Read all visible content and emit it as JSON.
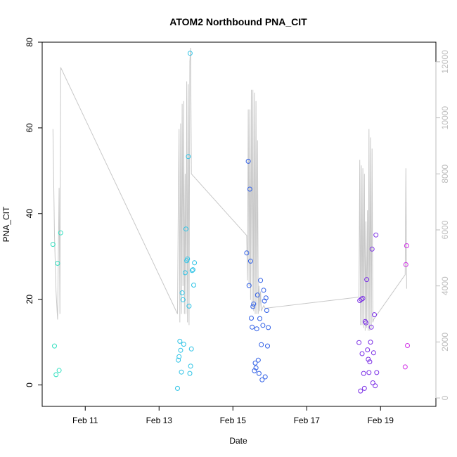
{
  "chart_data": {
    "type": "scatter",
    "title": "ATOM2 Northbound PNA_CIT",
    "xlabel": "Date",
    "ylabel": "PNA_CIT",
    "xlim": [
      "2025-02-09T20:00",
      "2025-02-20T12:00"
    ],
    "ylim": [
      -5,
      80
    ],
    "y2lim": [
      -300,
      12700
    ],
    "x_ticks": [
      "Feb 11",
      "Feb 13",
      "Feb 15",
      "Feb 17",
      "Feb 19"
    ],
    "x_tick_dates": [
      "2025-02-11",
      "2025-02-13",
      "2025-02-15",
      "2025-02-17",
      "2025-02-19"
    ],
    "y_ticks": [
      0,
      20,
      40,
      60,
      80
    ],
    "y2_ticks": [
      0,
      2000,
      4000,
      6000,
      8000,
      10000,
      12000
    ],
    "grid": false,
    "legend": "none",
    "colors": {
      "line": "#c8c8c8",
      "right_axis": "#bdbdbd",
      "group_feb10": "#33e0c0",
      "group_feb13": "#2cc3e6",
      "group_feb15": "#2f5fe6",
      "group_feb18": "#7b2fe6",
      "group_feb19": "#d02fe6"
    },
    "series": [
      {
        "type": "points",
        "color_key": "group_feb10",
        "points": [
          [
            "2025-02-10T03:00",
            32.8
          ],
          [
            "2025-02-10T04:00",
            9.1
          ],
          [
            "2025-02-10T05:00",
            2.4
          ],
          [
            "2025-02-10T06:00",
            28.4
          ],
          [
            "2025-02-10T07:00",
            3.4
          ],
          [
            "2025-02-10T08:00",
            35.5
          ]
        ]
      },
      {
        "type": "points",
        "color_key": "group_feb13",
        "points": [
          [
            "2025-02-13T12:00",
            -0.8
          ],
          [
            "2025-02-13T12:30",
            5.8
          ],
          [
            "2025-02-13T13:00",
            6.6
          ],
          [
            "2025-02-13T13:30",
            10.2
          ],
          [
            "2025-02-13T14:00",
            8.1
          ],
          [
            "2025-02-13T14:30",
            3.0
          ],
          [
            "2025-02-13T15:00",
            21.5
          ],
          [
            "2025-02-13T15:30",
            19.9
          ],
          [
            "2025-02-13T16:00",
            9.5
          ],
          [
            "2025-02-13T17:00",
            26.2
          ],
          [
            "2025-02-13T17:30",
            36.4
          ],
          [
            "2025-02-13T18:00",
            29.0
          ],
          [
            "2025-02-13T18:30",
            29.4
          ],
          [
            "2025-02-13T19:00",
            53.3
          ],
          [
            "2025-02-13T19:30",
            18.4
          ],
          [
            "2025-02-13T20:00",
            2.7
          ],
          [
            "2025-02-13T20:30",
            4.4
          ],
          [
            "2025-02-13T21:00",
            8.4
          ],
          [
            "2025-02-13T21:30",
            26.7
          ],
          [
            "2025-02-13T22:00",
            26.9
          ],
          [
            "2025-02-13T22:30",
            23.3
          ],
          [
            "2025-02-13T23:00",
            28.5
          ],
          [
            "2025-02-13T20:10",
            77.4
          ]
        ]
      },
      {
        "type": "points",
        "color_key": "group_feb15",
        "points": [
          [
            "2025-02-15T09:00",
            30.8
          ],
          [
            "2025-02-15T10:00",
            52.2
          ],
          [
            "2025-02-15T10:30",
            23.2
          ],
          [
            "2025-02-15T11:00",
            45.7
          ],
          [
            "2025-02-15T11:30",
            28.9
          ],
          [
            "2025-02-15T12:00",
            15.6
          ],
          [
            "2025-02-15T12:30",
            13.5
          ],
          [
            "2025-02-15T13:00",
            18.3
          ],
          [
            "2025-02-15T13:30",
            18.9
          ],
          [
            "2025-02-15T14:00",
            3.3
          ],
          [
            "2025-02-15T14:30",
            5.1
          ],
          [
            "2025-02-15T15:00",
            4.0
          ],
          [
            "2025-02-15T15:30",
            13.1
          ],
          [
            "2025-02-15T16:00",
            21.0
          ],
          [
            "2025-02-15T16:30",
            5.8
          ],
          [
            "2025-02-15T17:00",
            2.7
          ],
          [
            "2025-02-15T17:30",
            15.5
          ],
          [
            "2025-02-15T18:00",
            24.4
          ],
          [
            "2025-02-15T18:30",
            9.4
          ],
          [
            "2025-02-15T19:00",
            1.2
          ],
          [
            "2025-02-15T19:30",
            13.9
          ],
          [
            "2025-02-15T20:00",
            22.1
          ],
          [
            "2025-02-15T20:30",
            19.6
          ],
          [
            "2025-02-15T21:00",
            1.9
          ],
          [
            "2025-02-15T21:30",
            20.3
          ],
          [
            "2025-02-15T22:00",
            17.4
          ],
          [
            "2025-02-15T22:30",
            9.1
          ],
          [
            "2025-02-15T23:00",
            13.4
          ]
        ]
      },
      {
        "type": "points",
        "color_key": "group_feb18",
        "points": [
          [
            "2025-02-18T10:00",
            9.9
          ],
          [
            "2025-02-18T10:30",
            19.7
          ],
          [
            "2025-02-18T11:00",
            -1.4
          ],
          [
            "2025-02-18T11:30",
            20.0
          ],
          [
            "2025-02-18T12:00",
            7.3
          ],
          [
            "2025-02-18T12:30",
            20.2
          ],
          [
            "2025-02-18T13:00",
            2.7
          ],
          [
            "2025-02-18T13:30",
            -0.8
          ],
          [
            "2025-02-18T14:00",
            14.8
          ],
          [
            "2025-02-18T14:30",
            14.5
          ],
          [
            "2025-02-18T15:00",
            24.6
          ],
          [
            "2025-02-18T15:30",
            8.2
          ],
          [
            "2025-02-18T16:00",
            6.0
          ],
          [
            "2025-02-18T16:30",
            2.9
          ],
          [
            "2025-02-18T17:00",
            5.4
          ],
          [
            "2025-02-18T17:30",
            10.0
          ],
          [
            "2025-02-18T18:00",
            13.5
          ],
          [
            "2025-02-18T18:30",
            31.7
          ],
          [
            "2025-02-18T19:00",
            0.5
          ],
          [
            "2025-02-18T19:30",
            7.5
          ],
          [
            "2025-02-18T20:00",
            16.4
          ],
          [
            "2025-02-18T20:30",
            -0.2
          ],
          [
            "2025-02-18T21:00",
            35.0
          ],
          [
            "2025-02-18T21:30",
            2.9
          ]
        ]
      },
      {
        "type": "points",
        "color_key": "group_feb19",
        "points": [
          [
            "2025-02-19T16:00",
            4.2
          ],
          [
            "2025-02-19T16:30",
            28.1
          ],
          [
            "2025-02-19T17:00",
            32.5
          ],
          [
            "2025-02-19T17:30",
            9.2
          ]
        ]
      },
      {
        "type": "line",
        "axis": "right",
        "color_key": "line",
        "points": [
          [
            "2025-02-10T03:00",
            9600
          ],
          [
            "2025-02-10T04:00",
            5800
          ],
          [
            "2025-02-10T05:00",
            3800
          ],
          [
            "2025-02-10T06:00",
            2800
          ],
          [
            "2025-02-10T07:00",
            7500
          ],
          [
            "2025-02-10T07:30",
            3000
          ],
          [
            "2025-02-10T08:00",
            11800
          ],
          [
            "2025-02-13T12:00",
            3000
          ],
          [
            "2025-02-13T12:30",
            7000
          ],
          [
            "2025-02-13T13:00",
            9600
          ],
          [
            "2025-02-13T13:30",
            2700
          ],
          [
            "2025-02-13T14:00",
            9800
          ],
          [
            "2025-02-13T14:30",
            3000
          ],
          [
            "2025-02-13T15:00",
            10500
          ],
          [
            "2025-02-13T15:30",
            4000
          ],
          [
            "2025-02-13T16:00",
            10600
          ],
          [
            "2025-02-13T16:30",
            3000
          ],
          [
            "2025-02-13T17:00",
            8000
          ],
          [
            "2025-02-13T17:30",
            3000
          ],
          [
            "2025-02-13T18:00",
            11300
          ],
          [
            "2025-02-13T18:30",
            2700
          ],
          [
            "2025-02-13T19:00",
            11200
          ],
          [
            "2025-02-13T19:30",
            2600
          ],
          [
            "2025-02-13T20:00",
            12000
          ],
          [
            "2025-02-13T20:30",
            12500
          ],
          [
            "2025-02-13T21:00",
            8000
          ],
          [
            "2025-02-15T09:00",
            5800
          ],
          [
            "2025-02-15T09:30",
            4200
          ],
          [
            "2025-02-15T10:00",
            10300
          ],
          [
            "2025-02-15T10:30",
            4000
          ],
          [
            "2025-02-15T11:00",
            10300
          ],
          [
            "2025-02-15T11:30",
            3500
          ],
          [
            "2025-02-15T12:00",
            11000
          ],
          [
            "2025-02-15T12:30",
            3200
          ],
          [
            "2025-02-15T13:00",
            11000
          ],
          [
            "2025-02-15T13:30",
            3100
          ],
          [
            "2025-02-15T14:00",
            10900
          ],
          [
            "2025-02-15T14:30",
            3000
          ],
          [
            "2025-02-15T15:00",
            10600
          ],
          [
            "2025-02-15T15:30",
            3000
          ],
          [
            "2025-02-15T16:00",
            9200
          ],
          [
            "2025-02-15T16:30",
            3000
          ],
          [
            "2025-02-15T17:00",
            4000
          ],
          [
            "2025-02-15T17:30",
            3100
          ],
          [
            "2025-02-15T18:00",
            3800
          ],
          [
            "2025-02-15T18:30",
            3100
          ],
          [
            "2025-02-15T20:00",
            3300
          ],
          [
            "2025-02-15T21:00",
            3200
          ],
          [
            "2025-02-18T10:00",
            3600
          ],
          [
            "2025-02-18T10:30",
            8500
          ],
          [
            "2025-02-18T11:00",
            2600
          ],
          [
            "2025-02-18T11:30",
            8300
          ],
          [
            "2025-02-18T12:00",
            2600
          ],
          [
            "2025-02-18T12:30",
            8200
          ],
          [
            "2025-02-18T13:00",
            2500
          ],
          [
            "2025-02-18T13:30",
            8000
          ],
          [
            "2025-02-18T14:00",
            2400
          ],
          [
            "2025-02-18T14:30",
            6300
          ],
          [
            "2025-02-18T15:00",
            2500
          ],
          [
            "2025-02-18T15:30",
            6700
          ],
          [
            "2025-02-18T16:00",
            2400
          ],
          [
            "2025-02-18T16:30",
            9600
          ],
          [
            "2025-02-18T17:00",
            2400
          ],
          [
            "2025-02-18T17:30",
            9300
          ],
          [
            "2025-02-18T18:00",
            2500
          ],
          [
            "2025-02-18T18:30",
            8900
          ],
          [
            "2025-02-18T19:00",
            2700
          ],
          [
            "2025-02-18T19:30",
            2800
          ],
          [
            "2025-02-19T16:00",
            4400
          ],
          [
            "2025-02-19T16:30",
            8200
          ],
          [
            "2025-02-19T17:00",
            3900
          ]
        ]
      }
    ]
  }
}
